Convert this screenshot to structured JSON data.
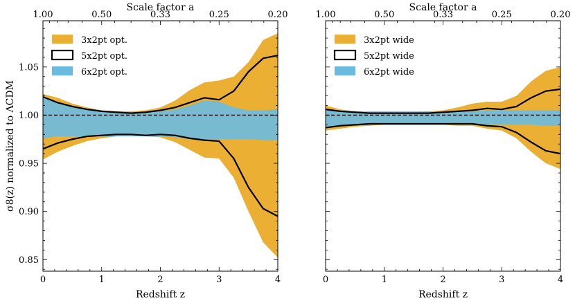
{
  "colors": {
    "orange": "#ebaf33",
    "blue": "#6bbbe0",
    "line": "#000000"
  },
  "chart_data": [
    {
      "type": "area",
      "panel": "left",
      "xlabel": "Redshift z",
      "ylabel": "σ8(z) normalized to ΛCDM",
      "top_xlabel": "Scale factor a",
      "xlim": [
        0,
        4
      ],
      "ylim": [
        0.838,
        1.098
      ],
      "x_ticks": [
        "0",
        "1",
        "2",
        "3",
        "4"
      ],
      "y_ticks": [
        "0.85",
        "0.90",
        "0.95",
        "1.00",
        "1.05"
      ],
      "top_ticks": [
        "1.00",
        "0.50",
        "0.33",
        "0.25",
        "0.20"
      ],
      "legend": [
        "3x2pt opt.",
        "5x2pt opt.",
        "6x2pt opt."
      ],
      "x": [
        0,
        0.25,
        0.5,
        0.75,
        1.0,
        1.25,
        1.5,
        1.75,
        2.0,
        2.25,
        2.5,
        2.75,
        3.0,
        3.25,
        3.5,
        3.75,
        4.0
      ],
      "series": [
        {
          "name": "3x2pt opt.",
          "upper": [
            1.022,
            1.018,
            1.012,
            1.008,
            1.005,
            1.004,
            1.004,
            1.005,
            1.008,
            1.015,
            1.026,
            1.034,
            1.036,
            1.04,
            1.055,
            1.078,
            1.085
          ],
          "lower": [
            0.954,
            0.962,
            0.968,
            0.973,
            0.976,
            0.978,
            0.979,
            0.978,
            0.977,
            0.972,
            0.964,
            0.956,
            0.955,
            0.935,
            0.9,
            0.868,
            0.852
          ]
        },
        {
          "name": "5x2pt opt.",
          "upper": [
            1.019,
            1.013,
            1.009,
            1.006,
            1.004,
            1.003,
            1.002,
            1.003,
            1.005,
            1.008,
            1.013,
            1.018,
            1.016,
            1.025,
            1.045,
            1.059,
            1.062
          ],
          "lower": [
            0.965,
            0.971,
            0.975,
            0.978,
            0.979,
            0.98,
            0.98,
            0.979,
            0.98,
            0.979,
            0.976,
            0.974,
            0.973,
            0.955,
            0.925,
            0.903,
            0.895
          ]
        },
        {
          "name": "6x2pt opt.",
          "upper": [
            1.018,
            1.014,
            1.009,
            1.006,
            1.004,
            1.003,
            1.003,
            1.003,
            1.004,
            1.006,
            1.01,
            1.015,
            1.014,
            1.008,
            1.005,
            1.005,
            1.006
          ],
          "lower": [
            0.976,
            0.978,
            0.978,
            0.978,
            0.978,
            0.978,
            0.978,
            0.978,
            0.978,
            0.977,
            0.975,
            0.974,
            0.975,
            0.975,
            0.975,
            0.974,
            0.974
          ]
        }
      ],
      "reference_line": 1.0
    },
    {
      "type": "area",
      "panel": "right",
      "xlabel": "Redshift z",
      "top_xlabel": "Scale factor a",
      "xlim": [
        0,
        4
      ],
      "ylim": [
        0.838,
        1.098
      ],
      "x_ticks": [
        "0",
        "1",
        "2",
        "3",
        "4"
      ],
      "top_ticks": [
        "1.00",
        "0.50",
        "0.33",
        "0.25",
        "0.20"
      ],
      "legend": [
        "3x2pt wide",
        "5x2pt wide",
        "6x2pt wide"
      ],
      "x": [
        0,
        0.25,
        0.5,
        0.75,
        1.0,
        1.25,
        1.5,
        1.75,
        2.0,
        2.25,
        2.5,
        2.75,
        3.0,
        3.25,
        3.5,
        3.75,
        4.0
      ],
      "series": [
        {
          "name": "3x2pt wide",
          "upper": [
            1.01,
            1.006,
            1.004,
            1.003,
            1.003,
            1.003,
            1.003,
            1.004,
            1.005,
            1.008,
            1.012,
            1.014,
            1.014,
            1.02,
            1.035,
            1.046,
            1.05
          ],
          "lower": [
            0.984,
            0.986,
            0.988,
            0.989,
            0.99,
            0.991,
            0.991,
            0.991,
            0.99,
            0.989,
            0.989,
            0.986,
            0.984,
            0.976,
            0.962,
            0.95,
            0.944
          ]
        },
        {
          "name": "5x2pt wide",
          "upper": [
            1.006,
            1.004,
            1.003,
            1.002,
            1.002,
            1.002,
            1.002,
            1.002,
            1.003,
            1.004,
            1.005,
            1.007,
            1.006,
            1.009,
            1.018,
            1.025,
            1.027
          ],
          "lower": [
            0.987,
            0.989,
            0.99,
            0.991,
            0.991,
            0.991,
            0.991,
            0.991,
            0.991,
            0.991,
            0.991,
            0.989,
            0.988,
            0.982,
            0.972,
            0.963,
            0.96
          ]
        },
        {
          "name": "6x2pt wide",
          "upper": [
            1.006,
            1.005,
            1.004,
            1.004,
            1.004,
            1.004,
            1.004,
            1.004,
            1.004,
            1.004,
            1.004,
            1.005,
            1.005,
            1.005,
            1.005,
            1.005,
            1.005
          ],
          "lower": [
            0.988,
            0.989,
            0.989,
            0.99,
            0.99,
            0.99,
            0.99,
            0.99,
            0.99,
            0.99,
            0.99,
            0.99,
            0.99,
            0.99,
            0.99,
            0.989,
            0.989
          ]
        }
      ],
      "reference_line": 1.0
    }
  ]
}
